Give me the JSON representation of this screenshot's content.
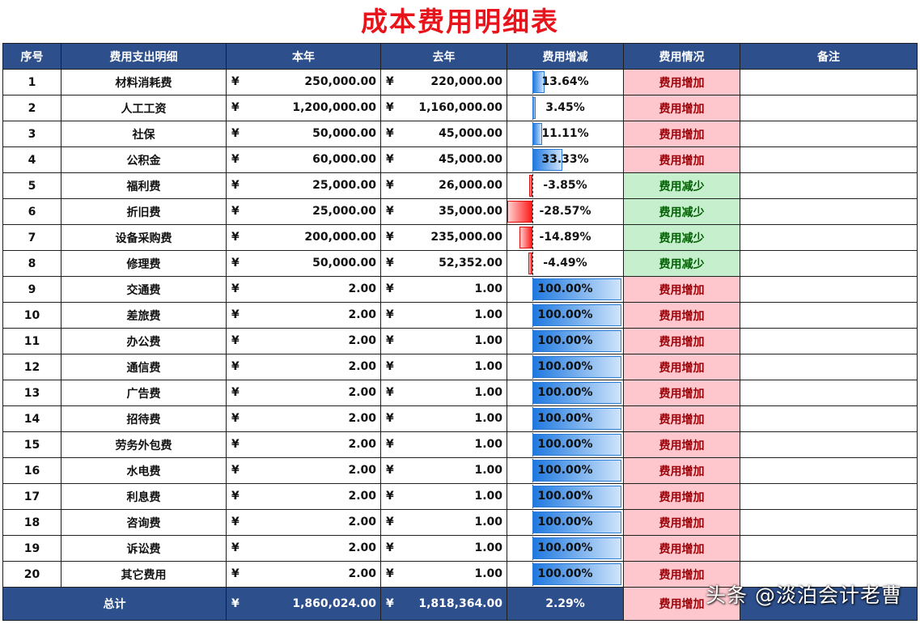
{
  "title": "成本费用明细表",
  "headers": {
    "idx": "序号",
    "name": "费用支出明细",
    "this_year": "本年",
    "last_year": "去年",
    "change": "费用增减",
    "status": "费用情况",
    "note": "备注"
  },
  "currency": "¥",
  "rows": [
    {
      "idx": "1",
      "name": "材料消耗费",
      "this_year": "250,000.00",
      "last_year": "220,000.00",
      "change_pct": "13.64%",
      "change_value": 0.1364,
      "status": "费用增加",
      "trend": "up"
    },
    {
      "idx": "2",
      "name": "人工工资",
      "this_year": "1,200,000.00",
      "last_year": "1,160,000.00",
      "change_pct": "3.45%",
      "change_value": 0.0345,
      "status": "费用增加",
      "trend": "up"
    },
    {
      "idx": "3",
      "name": "社保",
      "this_year": "50,000.00",
      "last_year": "45,000.00",
      "change_pct": "11.11%",
      "change_value": 0.1111,
      "status": "费用增加",
      "trend": "up"
    },
    {
      "idx": "4",
      "name": "公积金",
      "this_year": "60,000.00",
      "last_year": "45,000.00",
      "change_pct": "33.33%",
      "change_value": 0.3333,
      "status": "费用增加",
      "trend": "up"
    },
    {
      "idx": "5",
      "name": "福利费",
      "this_year": "25,000.00",
      "last_year": "26,000.00",
      "change_pct": "-3.85%",
      "change_value": -0.0385,
      "status": "费用减少",
      "trend": "down"
    },
    {
      "idx": "6",
      "name": "折旧费",
      "this_year": "25,000.00",
      "last_year": "35,000.00",
      "change_pct": "-28.57%",
      "change_value": -0.2857,
      "status": "费用减少",
      "trend": "down"
    },
    {
      "idx": "7",
      "name": "设备采购费",
      "this_year": "200,000.00",
      "last_year": "235,000.00",
      "change_pct": "-14.89%",
      "change_value": -0.1489,
      "status": "费用减少",
      "trend": "down"
    },
    {
      "idx": "8",
      "name": "修理费",
      "this_year": "50,000.00",
      "last_year": "52,352.00",
      "change_pct": "-4.49%",
      "change_value": -0.0449,
      "status": "费用减少",
      "trend": "down"
    },
    {
      "idx": "9",
      "name": "交通费",
      "this_year": "2.00",
      "last_year": "1.00",
      "change_pct": "100.00%",
      "change_value": 1.0,
      "status": "费用增加",
      "trend": "up"
    },
    {
      "idx": "10",
      "name": "差旅费",
      "this_year": "2.00",
      "last_year": "1.00",
      "change_pct": "100.00%",
      "change_value": 1.0,
      "status": "费用增加",
      "trend": "up"
    },
    {
      "idx": "11",
      "name": "办公费",
      "this_year": "2.00",
      "last_year": "1.00",
      "change_pct": "100.00%",
      "change_value": 1.0,
      "status": "费用增加",
      "trend": "up"
    },
    {
      "idx": "12",
      "name": "通信费",
      "this_year": "2.00",
      "last_year": "1.00",
      "change_pct": "100.00%",
      "change_value": 1.0,
      "status": "费用增加",
      "trend": "up"
    },
    {
      "idx": "13",
      "name": "广告费",
      "this_year": "2.00",
      "last_year": "1.00",
      "change_pct": "100.00%",
      "change_value": 1.0,
      "status": "费用增加",
      "trend": "up"
    },
    {
      "idx": "14",
      "name": "招待费",
      "this_year": "2.00",
      "last_year": "1.00",
      "change_pct": "100.00%",
      "change_value": 1.0,
      "status": "费用增加",
      "trend": "up"
    },
    {
      "idx": "15",
      "name": "劳务外包费",
      "this_year": "2.00",
      "last_year": "1.00",
      "change_pct": "100.00%",
      "change_value": 1.0,
      "status": "费用增加",
      "trend": "up"
    },
    {
      "idx": "16",
      "name": "水电费",
      "this_year": "2.00",
      "last_year": "1.00",
      "change_pct": "100.00%",
      "change_value": 1.0,
      "status": "费用增加",
      "trend": "up"
    },
    {
      "idx": "17",
      "name": "利息费",
      "this_year": "2.00",
      "last_year": "1.00",
      "change_pct": "100.00%",
      "change_value": 1.0,
      "status": "费用增加",
      "trend": "up"
    },
    {
      "idx": "18",
      "name": "咨询费",
      "this_year": "2.00",
      "last_year": "1.00",
      "change_pct": "100.00%",
      "change_value": 1.0,
      "status": "费用增加",
      "trend": "up"
    },
    {
      "idx": "19",
      "name": "诉讼费",
      "this_year": "2.00",
      "last_year": "1.00",
      "change_pct": "100.00%",
      "change_value": 1.0,
      "status": "费用增加",
      "trend": "up"
    },
    {
      "idx": "20",
      "name": "其它费用",
      "this_year": "2.00",
      "last_year": "1.00",
      "change_pct": "100.00%",
      "change_value": 1.0,
      "status": "费用增加",
      "trend": "up"
    }
  ],
  "total": {
    "label": "总计",
    "this_year": "1,860,024.00",
    "last_year": "1,818,364.00",
    "change_pct": "2.29%",
    "status": "费用增加"
  },
  "watermark": "头条 @淡泊会计老曹",
  "colors": {
    "header_bg": "#2d4f8c",
    "title": "#e8141c",
    "increase_bg": "#fec7ce",
    "increase_text": "#9c0006",
    "decrease_bg": "#c6efce",
    "decrease_text": "#006100",
    "bar_positive": "#1e78e0",
    "bar_negative": "#ff1a1a"
  }
}
